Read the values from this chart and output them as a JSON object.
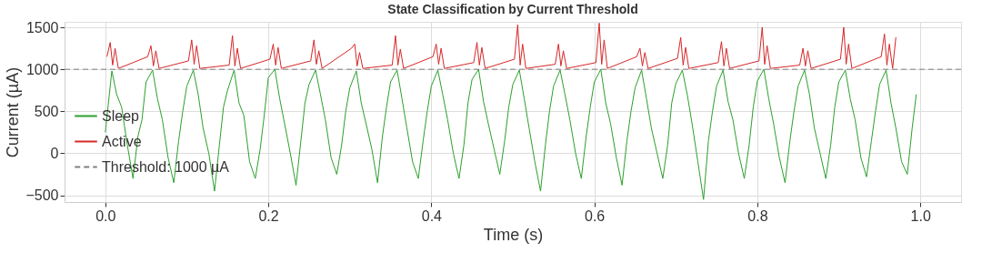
{
  "chart_data": {
    "type": "line",
    "title": "State Classification by Current Threshold",
    "xlabel": "Time (s)",
    "ylabel": "Current (µA)",
    "xlim": [
      -0.05,
      1.05
    ],
    "ylim": [
      -580,
      1565
    ],
    "xticks": [
      {
        "value": 0,
        "label": "0.0"
      },
      {
        "value": 0.2,
        "label": "0.2"
      },
      {
        "value": 0.4,
        "label": "0.4"
      },
      {
        "value": 0.6,
        "label": "0.6"
      },
      {
        "value": 0.8,
        "label": "0.8"
      },
      {
        "value": 1,
        "label": "1.0"
      }
    ],
    "yticks": [
      {
        "value": -500,
        "label": "−500"
      },
      0,
      500,
      1000,
      1500
    ],
    "grid": true,
    "legend": "left",
    "line_style": "solid",
    "marker": "none",
    "series": [
      {
        "name": "Sleep",
        "color": "#2ca02c",
        "x": [
          0,
          0.008,
          0.014,
          0.02,
          0.027,
          0.034,
          0.04,
          0.045,
          0.05,
          0.058,
          0.064,
          0.07,
          0.077,
          0.084,
          0.09,
          0.095,
          0.1,
          0.108,
          0.114,
          0.12,
          0.127,
          0.134,
          0.14,
          0.145,
          0.15,
          0.158,
          0.164,
          0.17,
          0.177,
          0.184,
          0.19,
          0.195,
          0.2,
          0.208,
          0.214,
          0.22,
          0.227,
          0.234,
          0.24,
          0.245,
          0.25,
          0.258,
          0.264,
          0.27,
          0.277,
          0.284,
          0.29,
          0.295,
          0.3,
          0.308,
          0.314,
          0.32,
          0.327,
          0.334,
          0.34,
          0.345,
          0.35,
          0.358,
          0.364,
          0.37,
          0.377,
          0.384,
          0.39,
          0.395,
          0.4,
          0.408,
          0.414,
          0.42,
          0.427,
          0.434,
          0.44,
          0.445,
          0.45,
          0.458,
          0.464,
          0.47,
          0.477,
          0.484,
          0.49,
          0.495,
          0.5,
          0.508,
          0.514,
          0.52,
          0.527,
          0.534,
          0.54,
          0.545,
          0.55,
          0.558,
          0.564,
          0.57,
          0.577,
          0.584,
          0.59,
          0.595,
          0.6,
          0.608,
          0.614,
          0.62,
          0.627,
          0.634,
          0.64,
          0.645,
          0.65,
          0.658,
          0.664,
          0.67,
          0.677,
          0.684,
          0.69,
          0.695,
          0.7,
          0.708,
          0.714,
          0.72,
          0.727,
          0.734,
          0.74,
          0.745,
          0.75,
          0.758,
          0.764,
          0.77,
          0.777,
          0.784,
          0.79,
          0.795,
          0.8,
          0.808,
          0.814,
          0.82,
          0.827,
          0.834,
          0.84,
          0.845,
          0.85,
          0.858,
          0.864,
          0.87,
          0.877,
          0.884,
          0.89,
          0.895,
          0.9,
          0.908,
          0.914,
          0.92,
          0.927,
          0.934,
          0.94,
          0.945,
          0.95,
          0.958,
          0.964,
          0.97,
          0.977,
          0.984,
          0.99,
          0.995
        ],
        "values": [
          250,
          980,
          700,
          550,
          100,
          -300,
          200,
          400,
          850,
          990,
          650,
          400,
          -50,
          -350,
          150,
          500,
          800,
          990,
          700,
          300,
          0,
          -450,
          100,
          550,
          750,
          990,
          600,
          450,
          -100,
          -300,
          50,
          450,
          900,
          1000,
          650,
          350,
          0,
          -380,
          150,
          600,
          820,
          990,
          700,
          400,
          -50,
          -250,
          100,
          500,
          780,
          980,
          600,
          350,
          50,
          -350,
          200,
          550,
          850,
          990,
          650,
          300,
          -100,
          -300,
          150,
          500,
          800,
          990,
          700,
          400,
          0,
          -300,
          100,
          600,
          880,
          1000,
          620,
          350,
          50,
          -250,
          150,
          550,
          820,
          990,
          650,
          300,
          -100,
          -450,
          100,
          500,
          800,
          990,
          700,
          400,
          0,
          -300,
          200,
          550,
          850,
          1000,
          600,
          350,
          -50,
          -380,
          150,
          500,
          780,
          990,
          650,
          300,
          0,
          -300,
          100,
          600,
          830,
          990,
          700,
          350,
          -100,
          -550,
          150,
          500,
          800,
          990,
          620,
          400,
          0,
          -300,
          100,
          550,
          860,
          1000,
          650,
          350,
          -50,
          -350,
          150,
          500,
          800,
          990,
          700,
          300,
          0,
          -300,
          100,
          550,
          850,
          990,
          650,
          400,
          -50,
          -280,
          150,
          500,
          820,
          990,
          600,
          300,
          -100,
          -250,
          300,
          700
        ]
      },
      {
        "name": "Active",
        "color": "#d62728",
        "x": [
          0.002,
          0.006,
          0.009,
          0.012,
          0.016,
          0.052,
          0.056,
          0.059,
          0.062,
          0.066,
          0.102,
          0.106,
          0.109,
          0.112,
          0.116,
          0.152,
          0.156,
          0.159,
          0.162,
          0.166,
          0.202,
          0.206,
          0.209,
          0.212,
          0.216,
          0.252,
          0.256,
          0.259,
          0.262,
          0.266,
          0.302,
          0.306,
          0.309,
          0.312,
          0.316,
          0.352,
          0.356,
          0.359,
          0.362,
          0.366,
          0.402,
          0.406,
          0.409,
          0.412,
          0.416,
          0.452,
          0.456,
          0.459,
          0.462,
          0.466,
          0.502,
          0.506,
          0.509,
          0.512,
          0.516,
          0.552,
          0.556,
          0.559,
          0.562,
          0.566,
          0.602,
          0.606,
          0.609,
          0.612,
          0.616,
          0.652,
          0.656,
          0.659,
          0.662,
          0.666,
          0.702,
          0.706,
          0.709,
          0.712,
          0.716,
          0.752,
          0.756,
          0.759,
          0.762,
          0.766,
          0.802,
          0.806,
          0.809,
          0.812,
          0.816,
          0.852,
          0.856,
          0.859,
          0.862,
          0.866,
          0.902,
          0.906,
          0.909,
          0.912,
          0.916,
          0.952,
          0.956,
          0.959,
          0.962,
          0.966,
          0.97
        ],
        "values": [
          1150,
          1320,
          1050,
          1250,
          1010,
          1150,
          1280,
          1040,
          1220,
          1010,
          1100,
          1350,
          1060,
          1280,
          1010,
          1050,
          1400,
          1040,
          1250,
          1010,
          1120,
          1300,
          1050,
          1260,
          1010,
          1100,
          1350,
          1060,
          1220,
          1010,
          1250,
          1300,
          1040,
          1200,
          1010,
          1050,
          1400,
          1050,
          1240,
          1010,
          1150,
          1300,
          1060,
          1250,
          1010,
          1080,
          1320,
          1050,
          1260,
          1010,
          1120,
          1530,
          1050,
          1300,
          1010,
          1060,
          1300,
          1040,
          1220,
          1010,
          1080,
          1550,
          1060,
          1350,
          1010,
          1150,
          1250,
          1040,
          1200,
          1010,
          1130,
          1380,
          1050,
          1260,
          1010,
          1080,
          1330,
          1040,
          1250,
          1010,
          1100,
          1500,
          1060,
          1280,
          1010,
          1050,
          1250,
          1040,
          1220,
          1010,
          1120,
          1500,
          1060,
          1300,
          1010,
          1150,
          1420,
          1050,
          1300,
          1010,
          1380
        ]
      }
    ],
    "ref_lines": [
      {
        "axis": "y",
        "value": 1000,
        "label": "Threshold: 1000 µA",
        "color": "#808080",
        "line_style": "dashed"
      }
    ]
  }
}
